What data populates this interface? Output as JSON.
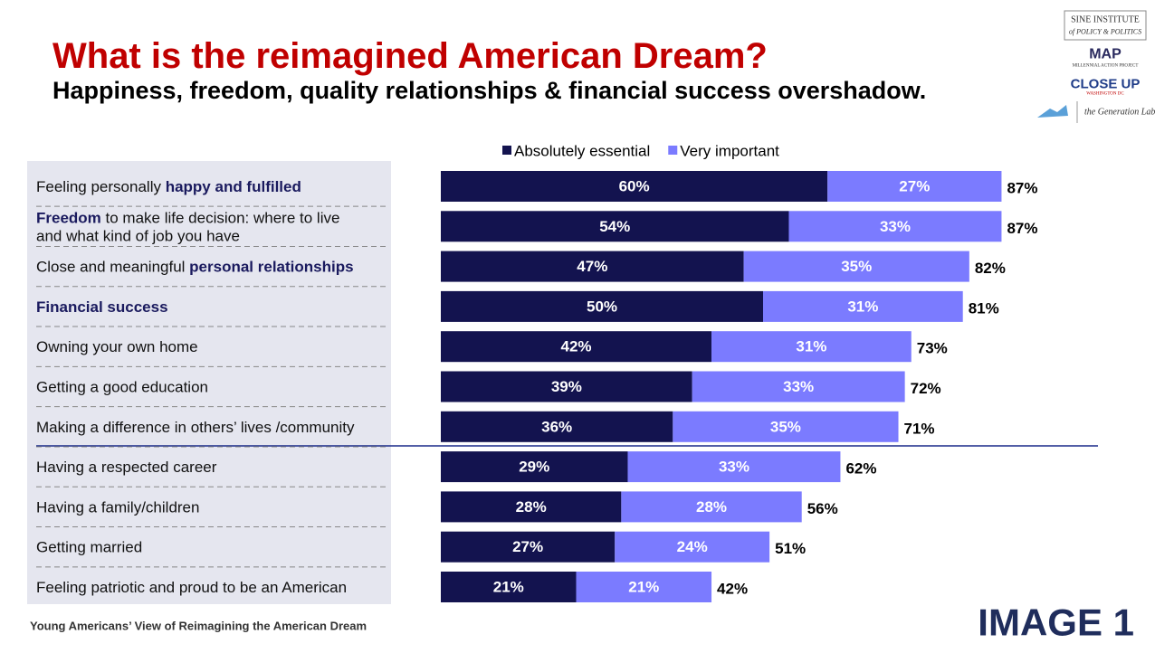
{
  "title": "What is the reimagined American Dream?",
  "subtitle": "Happiness, freedom, quality relationships & financial success overshadow.",
  "footnote": "Young Americans’ View of Reimagining the American Dream",
  "image_label": "IMAGE 1",
  "logos": [
    "SINE INSTITUTE",
    "of POLICY & POLITICS",
    "MAP",
    "MILLENNIAL ACTION PROJECT",
    "CLOSE UP",
    "WASHINGTON DC",
    "the Generation Lab"
  ],
  "chart_data": {
    "type": "stacked-bar-horizontal",
    "categories": [
      [
        [
          {
            "text": "Feeling personally "
          },
          {
            "text": "happy and fulfilled",
            "bold": true
          }
        ]
      ],
      [
        [
          {
            "text": "Freedom",
            "bold": true
          },
          {
            "text": " to make life decision: where to live"
          }
        ],
        [
          {
            "text": "and what kind of job you have"
          }
        ]
      ],
      [
        [
          {
            "text": "Close and meaningful "
          },
          {
            "text": "personal relationships",
            "bold": true
          }
        ]
      ],
      [
        [
          {
            "text": "Financial success",
            "bold": true
          }
        ]
      ],
      [
        [
          {
            "text": "Owning your own home"
          }
        ]
      ],
      [
        [
          {
            "text": "Getting a good education"
          }
        ]
      ],
      [
        [
          {
            "text": "Making a difference in others’ lives /community"
          }
        ]
      ],
      [
        [
          {
            "text": "Having a respected career"
          }
        ]
      ],
      [
        [
          {
            "text": "Having a family/children"
          }
        ]
      ],
      [
        [
          {
            "text": "Getting married"
          }
        ]
      ],
      [
        [
          {
            "text": "Feeling patriotic and proud to be an American"
          }
        ]
      ]
    ],
    "series": [
      {
        "name": "Absolutely essential",
        "color": "#13134f",
        "values": [
          60,
          54,
          47,
          50,
          42,
          39,
          36,
          29,
          28,
          27,
          21
        ],
        "value_labels": [
          "60%",
          "54%",
          "47%",
          "50%",
          "42%",
          "39%",
          "36%",
          "29%",
          "28%",
          "27%",
          "21%"
        ]
      },
      {
        "name": "Very important",
        "color": "#7b7bff",
        "values": [
          27,
          33,
          35,
          31,
          31,
          33,
          35,
          33,
          28,
          24,
          21
        ],
        "value_labels": [
          "27%",
          "33%",
          "35%",
          "31%",
          "31%",
          "33%",
          "35%",
          "33%",
          "28%",
          "24%",
          "21%"
        ]
      }
    ],
    "totals": [
      87,
      87,
      82,
      81,
      73,
      72,
      71,
      62,
      56,
      51,
      42
    ],
    "total_labels": [
      "87%",
      "87%",
      "82%",
      "81%",
      "73%",
      "72%",
      "71%",
      "62%",
      "56%",
      "51%",
      "42%"
    ],
    "emphasis_color": "#1a1a5e"
  }
}
